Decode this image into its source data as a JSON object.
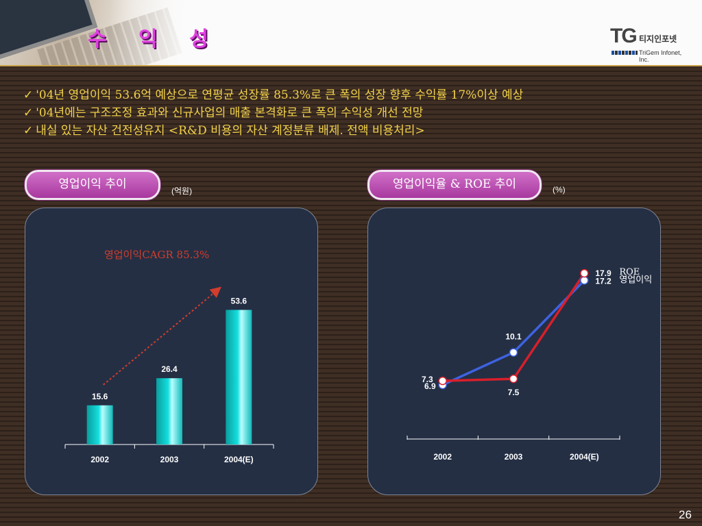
{
  "title": "수 익 성",
  "logo": {
    "mark": "TG",
    "korean": "티지인포넷",
    "english": "TriGem Infonet, Inc."
  },
  "bullets": [
    "'04년 영업이익 53.6억 예상으로 연평균 성장률 85.3%로 큰 폭의 성장 향후 수익률 17%이상 예상",
    "'04년에는 구조조정 효과와 신규사업의 매출 본격화로 큰 폭의 수익성 개선 전망",
    "내실 있는 자산 건전성유지 <R&D 비용의 자산 계정분류 배제. 전액 비용처리>"
  ],
  "left_section": {
    "label": "영업이익 추이",
    "unit": "(억원)"
  },
  "right_section": {
    "label": "영업이익율 & ROE 추이",
    "unit": "(%)"
  },
  "page_number": "26",
  "colors": {
    "bar": "#15dede",
    "roe": "#d81f2a",
    "op_margin": "#3e62e0",
    "trend_arrow": "#d23d2d",
    "accent_text": "#f2d24a"
  },
  "chart_data": [
    {
      "type": "bar",
      "categories": [
        "2002",
        "2003",
        "2004(E)"
      ],
      "values": [
        15.6,
        26.4,
        53.6
      ],
      "data_labels": [
        "15.6",
        "26.4",
        "53.6"
      ],
      "annotation": "영업이익CAGR 85.3%",
      "ylim": [
        0,
        60
      ]
    },
    {
      "type": "line",
      "categories": [
        "2002",
        "2003",
        "2004(E)"
      ],
      "series": [
        {
          "name": "ROE",
          "values": [
            7.3,
            7.5,
            17.9
          ],
          "labels": [
            "7.3",
            "7.5",
            "17.9"
          ]
        },
        {
          "name": "영업이익",
          "values": [
            6.9,
            10.1,
            17.2
          ],
          "labels": [
            "6.9",
            "10.1",
            "17.2"
          ]
        }
      ],
      "ylim": [
        0,
        20
      ]
    }
  ]
}
